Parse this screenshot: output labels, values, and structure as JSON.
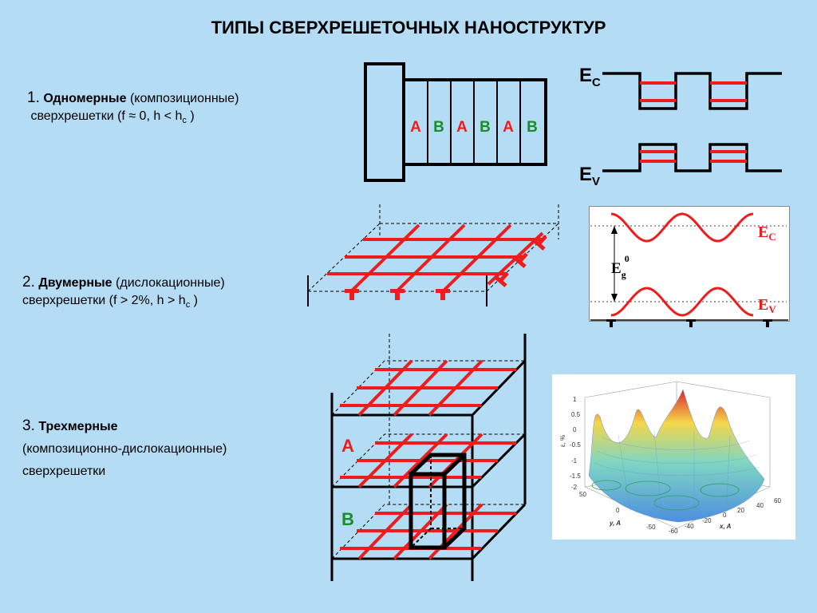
{
  "title": "ТИПЫ СВЕРХРЕШЕТОЧНЫХ НАНОСТРУКТУР",
  "items": [
    {
      "num": "1.",
      "name": "Одномерные",
      "kind": "(композиционные)",
      "line2": "сверхрешетки (f ≈ 0, h < h",
      "sub": "c",
      "close": " )"
    },
    {
      "num": "2.",
      "name": "Двумерные",
      "kind": "(дислокационные)",
      "line2": "сверхрешетки (f > 2%, h > h",
      "sub": "c",
      "close": " )"
    },
    {
      "num": "3.",
      "name": "Трехмерные",
      "kind": "(композиционно-дислокационные)",
      "line2": "сверхрешетки"
    }
  ],
  "layers": [
    "A",
    "B",
    "A",
    "B",
    "A",
    "B"
  ],
  "band": {
    "ec_main": "E",
    "ec_sub": "C",
    "ev_main": "E",
    "ev_sub": "V"
  },
  "panel": {
    "ec_main": "E",
    "ec_sub": "C",
    "ev_main": "E",
    "ev_sub": "V",
    "eg_main": "E",
    "eg_sub": "g",
    "eg_sup": "0"
  },
  "three_d": {
    "label_a": "A",
    "label_b": "B"
  },
  "plot": {
    "zlabel": "ε, %",
    "zticks": [
      "1",
      "0.5",
      "0",
      "-0.5",
      "-1",
      "-1.5",
      "-2"
    ],
    "yticks": [
      "50",
      "0",
      "-50"
    ],
    "xticks": [
      "-60",
      "-40",
      "-20",
      "0",
      "20",
      "40",
      "60"
    ],
    "xlabel": "x, A",
    "ylabel": "y, A"
  },
  "colors": {
    "background": "#b5dcf5",
    "red": "#ee1c1c",
    "green": "#1a8c2a",
    "black": "#000000"
  }
}
